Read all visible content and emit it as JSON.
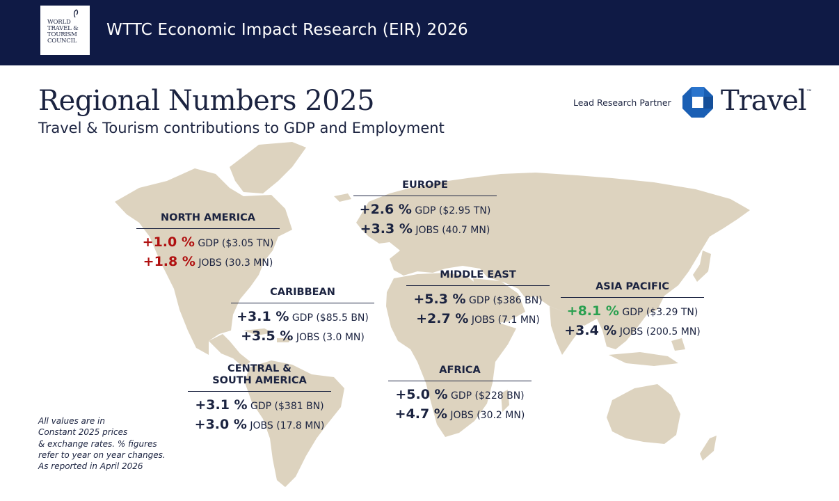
{
  "header": {
    "logo_text": "WORLD TRAVEL & TOURISM COUNCIL",
    "title": "WTTC Economic Impact Research (EIR) 2026"
  },
  "page": {
    "title": "Regional Numbers 2025",
    "subtitle": "Travel & Tourism contributions to GDP and Employment"
  },
  "partner": {
    "label": "Lead Research Partner",
    "name": "Travel",
    "tm": "™"
  },
  "regions": {
    "north_america": {
      "name": "NORTH AMERICA",
      "gdp_pct": "+1.0 %",
      "gdp_label": "GDP ($3.05 TN)",
      "jobs_pct": "+1.8 %",
      "jobs_label": "JOBS (30.3 MN)"
    },
    "caribbean": {
      "name": "CARIBBEAN",
      "gdp_pct": "+3.1 %",
      "gdp_label": "GDP ($85.5 BN)",
      "jobs_pct": "+3.5 %",
      "jobs_label": "JOBS (3.0 MN)"
    },
    "csa": {
      "name_line1": "CENTRAL &",
      "name_line2": "SOUTH AMERICA",
      "gdp_pct": "+3.1 %",
      "gdp_label": "GDP ($381 BN)",
      "jobs_pct": "+3.0 %",
      "jobs_label": "JOBS (17.8 MN)"
    },
    "europe": {
      "name": "EUROPE",
      "gdp_pct": "+2.6 %",
      "gdp_label": "GDP ($2.95 TN)",
      "jobs_pct": "+3.3 %",
      "jobs_label": "JOBS (40.7 MN)"
    },
    "middle_east": {
      "name": "MIDDLE EAST",
      "gdp_pct": "+5.3 %",
      "gdp_label": "GDP ($386 BN)",
      "jobs_pct": "+2.7 %",
      "jobs_label": "JOBS (7.1 MN)"
    },
    "africa": {
      "name": "AFRICA",
      "gdp_pct": "+5.0 %",
      "gdp_label": "GDP ($228 BN)",
      "jobs_pct": "+4.7 %",
      "jobs_label": "JOBS (30.2 MN)"
    },
    "asia_pacific": {
      "name": "ASIA PACIFIC",
      "gdp_pct": "+8.1 %",
      "gdp_label": "GDP ($3.29 TN)",
      "jobs_pct": "+3.4 %",
      "jobs_label": "JOBS (200.5 MN)"
    }
  },
  "footnote": {
    "line1": "All values are in",
    "line2": "Constant 2025 prices",
    "line3": "& exchange rates. % figures",
    "line4": "refer to year on year changes.",
    "line5": "As reported in April 2026"
  },
  "colors": {
    "navy": "#0f1a45",
    "map": "#ddd3bf",
    "decline": "#b01010",
    "growth": "#2aa050",
    "partner_blue": "#1a5fb4"
  }
}
